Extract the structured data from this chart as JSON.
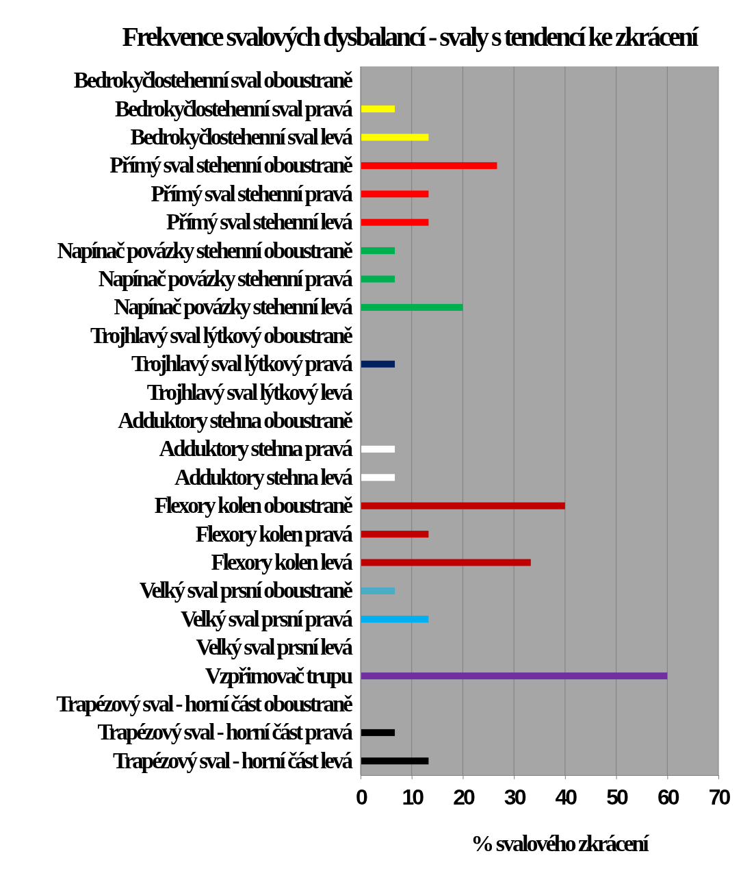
{
  "chart_data": {
    "type": "bar",
    "orientation": "horizontal",
    "title": "Frekvence svalových dysbalancí - svaly s tendencí ke zkrácení",
    "xlabel": "% svalového zkrácení",
    "categories": [
      "Bedrokyčlostehenní sval oboustraně",
      "Bedrokyčlostehenní sval pravá",
      "Bedrokyčlostehenní sval levá",
      "Přímý sval stehenní oboustraně",
      "Přímý sval stehenní pravá",
      "Přímý sval stehenní levá",
      "Napínač povázky stehenní oboustraně",
      "Napínač povázky stehenní pravá",
      "Napínač povázky stehenní levá",
      "Trojhlavý sval lýtkový oboustraně",
      "Trojhlavý sval lýtkový pravá",
      "Trojhlavý sval lýtkový levá",
      "Adduktory stehna oboustraně",
      "Adduktory stehna pravá",
      "Adduktory stehna levá",
      "Flexory kolen oboustraně",
      "Flexory kolen pravá",
      "Flexory kolen levá",
      "Velký sval prsní oboustraně",
      "Velký sval prsní pravá",
      "Velký sval prsní levá",
      "Vzpřimovač trupu",
      "Trapézový sval - horní část oboustraně",
      "Trapézový sval - horní část pravá",
      "Trapézový sval - horní část levá"
    ],
    "values": [
      0,
      6.7,
      13.3,
      26.7,
      13.3,
      13.3,
      6.7,
      6.7,
      20,
      0,
      6.7,
      0,
      0,
      6.7,
      6.7,
      40,
      13.3,
      33.3,
      6.7,
      13.3,
      0,
      60,
      0,
      6.7,
      13.3
    ],
    "colors": [
      "#ffff00",
      "#ffff00",
      "#ffff00",
      "#ff0000",
      "#ff0000",
      "#ff0000",
      "#00b050",
      "#00b050",
      "#00b050",
      "#002060",
      "#002060",
      "#002060",
      "#ffffff",
      "#ffffff",
      "#ffffff",
      "#c00000",
      "#c00000",
      "#c00000",
      "#4bacc6",
      "#00b0f0",
      "#00b0f0",
      "#7030a0",
      "#000000",
      "#000000",
      "#000000"
    ],
    "xlim": [
      0,
      70
    ],
    "xticks": [
      0,
      10,
      20,
      30,
      40,
      50,
      60,
      70
    ],
    "grid": "x"
  }
}
